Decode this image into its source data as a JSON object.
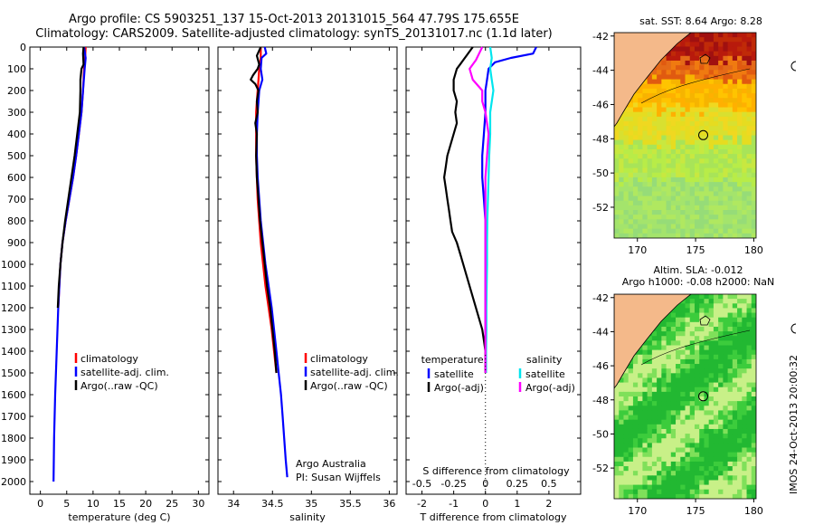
{
  "header": {
    "title_line1": "Argo profile: CS 5903251_137 15-Oct-2013 20131015_564 47.79S 175.655E",
    "title_line2": "Climatology: CARS2009. Satellite-adjusted climatology: synTS_20131017.nc (1.1d later)"
  },
  "colors": {
    "climatology": "#ff0000",
    "satellite": "#0000ff",
    "argo": "#000000",
    "sal_satellite": "#00e5ee",
    "sal_argo": "#ff00ff"
  },
  "chart_data": [
    {
      "type": "line",
      "id": "temperature",
      "xlabel": "temperature (deg C)",
      "ylabel": "",
      "xlim": [
        -2,
        32
      ],
      "ylim": [
        0,
        2080
      ],
      "xticks": [
        "0",
        "5",
        "10",
        "15",
        "20",
        "25",
        "30"
      ],
      "xtick_values": [
        0,
        5,
        10,
        15,
        20,
        25,
        30
      ],
      "yticks": [
        "0",
        "100",
        "200",
        "300",
        "400",
        "500",
        "600",
        "700",
        "800",
        "900",
        "1000",
        "1100",
        "1200",
        "1300",
        "1400",
        "1500",
        "1600",
        "1700",
        "1800",
        "1900",
        "2000"
      ],
      "ytick_values": [
        0,
        100,
        200,
        300,
        400,
        500,
        600,
        700,
        800,
        900,
        1000,
        1100,
        1200,
        1300,
        1400,
        1500,
        1600,
        1700,
        1800,
        1900,
        2000
      ],
      "legend": [
        "climatology",
        "satellite-adj. clim.",
        "Argo(..raw -QC)"
      ],
      "series": [
        {
          "name": "climatology",
          "color_key": "climatology",
          "depth": [
            0,
            50,
            100,
            200,
            300,
            400,
            500,
            600,
            700,
            800,
            900,
            1000,
            1200
          ],
          "values": [
            8.6,
            8.5,
            8.3,
            8.1,
            7.8,
            7.3,
            6.8,
            6.2,
            5.5,
            4.8,
            4.2,
            3.8,
            3.4
          ]
        },
        {
          "name": "satellite-adj. clim.",
          "color_key": "satellite",
          "depth": [
            0,
            50,
            100,
            200,
            300,
            400,
            500,
            600,
            700,
            800,
            900,
            1000,
            1200,
            1400,
            1600,
            1800,
            2000
          ],
          "values": [
            8.3,
            8.6,
            8.4,
            8.1,
            7.8,
            7.3,
            6.8,
            6.2,
            5.5,
            4.8,
            4.2,
            3.8,
            3.4,
            3.1,
            2.8,
            2.6,
            2.5
          ]
        },
        {
          "name": "Argo(..raw -QC)",
          "color_key": "argo",
          "depth": [
            0,
            30,
            80,
            100,
            150,
            200,
            300,
            400,
            500,
            600,
            700,
            800,
            900,
            1000,
            1100,
            1200
          ],
          "values": [
            8.2,
            8.1,
            8.2,
            7.8,
            7.6,
            7.6,
            7.5,
            7.0,
            6.5,
            5.9,
            5.3,
            4.7,
            4.2,
            3.8,
            3.5,
            3.3
          ]
        }
      ]
    },
    {
      "type": "line",
      "id": "salinity",
      "xlabel": "salinity",
      "xlim": [
        33.8,
        36.1
      ],
      "ylim": [
        0,
        2080
      ],
      "xticks": [
        "34",
        "34.5",
        "35",
        "35.5",
        "36"
      ],
      "xtick_values": [
        34,
        34.5,
        35,
        35.5,
        36
      ],
      "legend": [
        "climatology",
        "satellite-adj. clim.",
        "Argo(..raw -QC)"
      ],
      "annotation_line1": "Argo Australia",
      "annotation_line2": "PI: Susan Wijffels",
      "series": [
        {
          "name": "climatology",
          "color_key": "climatology",
          "depth": [
            0,
            50,
            100,
            150,
            200,
            250,
            300,
            400,
            500,
            600,
            700,
            800,
            900,
            1000,
            1100,
            1200,
            1300,
            1400,
            1500
          ],
          "values": [
            34.35,
            34.35,
            34.33,
            34.32,
            34.31,
            34.3,
            34.29,
            34.29,
            34.29,
            34.3,
            34.31,
            34.33,
            34.35,
            34.38,
            34.41,
            34.45,
            34.49,
            34.52,
            34.55
          ]
        },
        {
          "name": "satellite-adj. clim.",
          "color_key": "satellite",
          "depth": [
            0,
            30,
            50,
            100,
            150,
            200,
            250,
            300,
            400,
            500,
            600,
            700,
            800,
            900,
            1000,
            1100,
            1200,
            1300,
            1400,
            1500,
            1600,
            1700,
            1800,
            1900,
            1980
          ],
          "values": [
            34.4,
            34.42,
            34.36,
            34.35,
            34.37,
            34.33,
            34.32,
            34.31,
            34.3,
            34.3,
            34.31,
            34.33,
            34.35,
            34.38,
            34.41,
            34.45,
            34.49,
            34.52,
            34.55,
            34.58,
            34.61,
            34.63,
            34.65,
            34.67,
            34.69
          ]
        },
        {
          "name": "Argo(..raw -QC)",
          "color_key": "argo",
          "depth": [
            0,
            40,
            80,
            100,
            130,
            150,
            170,
            200,
            250,
            300,
            350,
            400,
            500,
            600,
            700,
            800,
            900,
            1000,
            1100,
            1200,
            1300,
            1400,
            1500
          ],
          "values": [
            34.35,
            34.3,
            34.33,
            34.31,
            34.25,
            34.22,
            34.28,
            34.32,
            34.3,
            34.31,
            34.28,
            34.3,
            34.29,
            34.3,
            34.32,
            34.34,
            34.37,
            34.4,
            34.43,
            34.47,
            34.5,
            34.53,
            34.55
          ]
        }
      ]
    },
    {
      "type": "line",
      "id": "difference",
      "xlabel": "T difference from climatology",
      "xlim": [
        -2.5,
        3.0
      ],
      "ylim": [
        0,
        2080
      ],
      "xticks": [
        "-2",
        "-1",
        "0",
        "1",
        "2"
      ],
      "xtick_values": [
        -2,
        -1,
        0,
        1,
        2
      ],
      "top_label": "S difference from climatology",
      "top_ticks": [
        "-0.5",
        "-0.25",
        "0",
        "0.25",
        "0.5"
      ],
      "top_tick_values": [
        -2,
        -1,
        0,
        1,
        2
      ],
      "legend_heading_temperature": "temperature",
      "legend_heading_salinity": "salinity",
      "legend": [
        "satellite",
        "Argo(-adj)",
        "satellite",
        "Argo(-adj)"
      ],
      "series": [
        {
          "name": "T satellite",
          "color_key": "satellite",
          "depth": [
            0,
            30,
            50,
            70,
            100,
            150,
            200,
            300,
            400,
            500,
            600,
            700,
            800,
            900,
            1000,
            1100,
            1200,
            1300,
            1400,
            1500
          ],
          "values": [
            1.6,
            1.5,
            0.8,
            0.3,
            0.1,
            0.05,
            0,
            0,
            -0.05,
            -0.1,
            -0.1,
            -0.05,
            0,
            0,
            0,
            0,
            0,
            0,
            0,
            0
          ]
        },
        {
          "name": "T Argo(-adj)",
          "color_key": "argo",
          "depth": [
            0,
            40,
            60,
            80,
            100,
            150,
            200,
            250,
            300,
            350,
            400,
            450,
            500,
            550,
            600,
            650,
            700,
            750,
            800,
            850,
            900,
            950,
            1000,
            1050,
            1100,
            1150,
            1200,
            1250,
            1300,
            1350,
            1400,
            1450,
            1500
          ],
          "values": [
            -0.4,
            -0.6,
            -0.7,
            -0.8,
            -0.9,
            -1.0,
            -1.0,
            -0.9,
            -0.95,
            -0.9,
            -1.0,
            -1.1,
            -1.2,
            -1.25,
            -1.3,
            -1.25,
            -1.2,
            -1.15,
            -1.1,
            -1.05,
            -0.9,
            -0.8,
            -0.7,
            -0.6,
            -0.5,
            -0.4,
            -0.3,
            -0.2,
            -0.1,
            -0.05,
            0,
            0,
            0
          ]
        },
        {
          "name": "S satellite",
          "color_key": "sal_satellite",
          "depth": [
            0,
            50,
            100,
            150,
            200,
            300,
            400,
            500,
            600,
            700,
            800,
            900,
            1000,
            1100,
            1200,
            1300,
            1400,
            1500
          ],
          "values": [
            0.15,
            0.2,
            0.15,
            0.2,
            0.25,
            0.15,
            0.15,
            0.12,
            0.1,
            0.08,
            0.06,
            0.05,
            0.05,
            0.04,
            0.03,
            0.03,
            0.02,
            0.02
          ]
        },
        {
          "name": "S Argo(-adj)",
          "color_key": "sal_argo",
          "depth": [
            0,
            30,
            60,
            100,
            150,
            200,
            250,
            300,
            400,
            500,
            600,
            700,
            800,
            900,
            1000,
            1100,
            1200,
            1300,
            1400,
            1500
          ],
          "values": [
            -0.1,
            -0.2,
            -0.3,
            -0.5,
            -0.4,
            -0.1,
            -0.1,
            0,
            0.1,
            0.05,
            0,
            0,
            0,
            0,
            0,
            0,
            0,
            0,
            0,
            0
          ]
        }
      ]
    },
    {
      "type": "heatmap",
      "id": "sst_map",
      "title": "sat. SST: 8.64  Argo: 8.28",
      "xticks": [
        "170",
        "175",
        "180"
      ],
      "xtick_values": [
        170,
        175,
        180
      ],
      "yticks": [
        "-42",
        "-44",
        "-46",
        "-48",
        "-50",
        "-52"
      ],
      "ytick_values": [
        -42,
        -44,
        -46,
        -48,
        -50,
        -52
      ],
      "xlim": [
        168,
        180.2
      ],
      "ylim": [
        -53.8,
        -41.8
      ],
      "float_lon": 175.655,
      "float_lat": -47.79
    },
    {
      "type": "heatmap",
      "id": "sla_map",
      "title_line1": "Altim. SLA: -0.012",
      "title_line2": "Argo h1000: -0.08 h2000: NaN",
      "xticks": [
        "170",
        "175",
        "180"
      ],
      "xtick_values": [
        170,
        175,
        180
      ],
      "yticks": [
        "-42",
        "-44",
        "-46",
        "-48",
        "-50",
        "-52"
      ],
      "ytick_values": [
        -42,
        -44,
        -46,
        -48,
        -50,
        -52
      ],
      "xlim": [
        168,
        180.2
      ],
      "ylim": [
        -53.8,
        -41.8
      ],
      "float_lon": 175.655,
      "float_lat": -47.79
    }
  ],
  "footer": {
    "stamp": "IMOS 24-Oct-2013 20:00:32"
  }
}
